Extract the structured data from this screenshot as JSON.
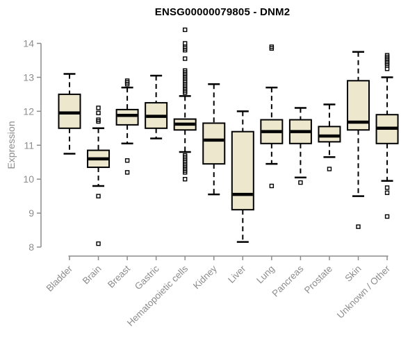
{
  "colors": {
    "box_fill": "#EDE8CD",
    "box_stroke": "#000000",
    "median": "#000000",
    "whisker": "#000000",
    "outlier": "#000000",
    "axis": "#8C8C8C",
    "tick_text": "#8C8C8C",
    "title_text": "#000000",
    "background": "#FFFFFF"
  },
  "chart_data": {
    "type": "boxplot",
    "title": "ENSG00000079805 - DNM2",
    "ylabel": "Expression",
    "xlabel": "",
    "ylim": [
      8,
      14.45
    ],
    "y_ticks": [
      8,
      9,
      10,
      11,
      12,
      13,
      14
    ],
    "grid": false,
    "legend": false,
    "categories": [
      "Bladder",
      "Brain",
      "Breast",
      "Gastric",
      "Hematopoietic cells",
      "Kidney",
      "Liver",
      "Lung",
      "Pancreas",
      "Prostate",
      "Skin",
      "Unknown / Other"
    ],
    "boxes": [
      {
        "category": "Bladder",
        "whisker_low": 10.75,
        "q1": 11.5,
        "median": 11.95,
        "q3": 12.5,
        "whisker_high": 13.1,
        "outliers": []
      },
      {
        "category": "Brain",
        "whisker_low": 9.8,
        "q1": 10.35,
        "median": 10.6,
        "q3": 10.85,
        "whisker_high": 11.5,
        "outliers": [
          12.1,
          11.95,
          11.75,
          11.7,
          9.5,
          8.1
        ]
      },
      {
        "category": "Breast",
        "whisker_low": 11.05,
        "q1": 11.6,
        "median": 11.88,
        "q3": 12.05,
        "whisker_high": 12.7,
        "outliers": [
          12.9,
          12.85,
          12.8,
          10.55,
          10.2
        ]
      },
      {
        "category": "Gastric",
        "whisker_low": 11.2,
        "q1": 11.5,
        "median": 11.85,
        "q3": 12.25,
        "whisker_high": 13.05,
        "outliers": []
      },
      {
        "category": "Hematopoietic cells",
        "whisker_low": 10.8,
        "q1": 11.45,
        "median": 11.62,
        "q3": 11.77,
        "whisker_high": 12.45,
        "outliers": [
          14.4,
          14.0,
          13.9,
          13.85,
          13.8,
          13.55,
          13.2,
          13.15,
          13.1,
          13.05,
          13.0,
          12.95,
          12.9,
          12.85,
          12.8,
          12.75,
          12.7,
          12.65,
          12.6,
          12.55,
          10.7,
          10.65,
          10.6,
          10.55,
          10.5,
          10.45,
          10.4,
          10.35,
          10.3,
          10.25,
          10.2,
          10.0
        ]
      },
      {
        "category": "Kidney",
        "whisker_low": 9.55,
        "q1": 10.45,
        "median": 11.15,
        "q3": 11.65,
        "whisker_high": 12.8,
        "outliers": []
      },
      {
        "category": "Liver",
        "whisker_low": 8.15,
        "q1": 9.1,
        "median": 9.55,
        "q3": 11.4,
        "whisker_high": 12.0,
        "outliers": []
      },
      {
        "category": "Lung",
        "whisker_low": 10.45,
        "q1": 11.05,
        "median": 11.4,
        "q3": 11.75,
        "whisker_high": 12.7,
        "outliers": [
          13.9,
          13.85,
          9.8
        ]
      },
      {
        "category": "Pancreas",
        "whisker_low": 10.05,
        "q1": 11.05,
        "median": 11.4,
        "q3": 11.75,
        "whisker_high": 12.1,
        "outliers": [
          9.9
        ]
      },
      {
        "category": "Prostate",
        "whisker_low": 10.65,
        "q1": 11.1,
        "median": 11.27,
        "q3": 11.55,
        "whisker_high": 12.2,
        "outliers": [
          10.3
        ]
      },
      {
        "category": "Skin",
        "whisker_low": 9.5,
        "q1": 11.45,
        "median": 11.68,
        "q3": 12.9,
        "whisker_high": 13.75,
        "outliers": [
          8.6
        ]
      },
      {
        "category": "Unknown / Other",
        "whisker_low": 9.95,
        "q1": 11.05,
        "median": 11.5,
        "q3": 11.9,
        "whisker_high": 13.0,
        "outliers": [
          13.65,
          13.6,
          13.55,
          13.5,
          13.45,
          13.4,
          13.35,
          13.25,
          9.75,
          9.6,
          8.9
        ]
      }
    ]
  }
}
